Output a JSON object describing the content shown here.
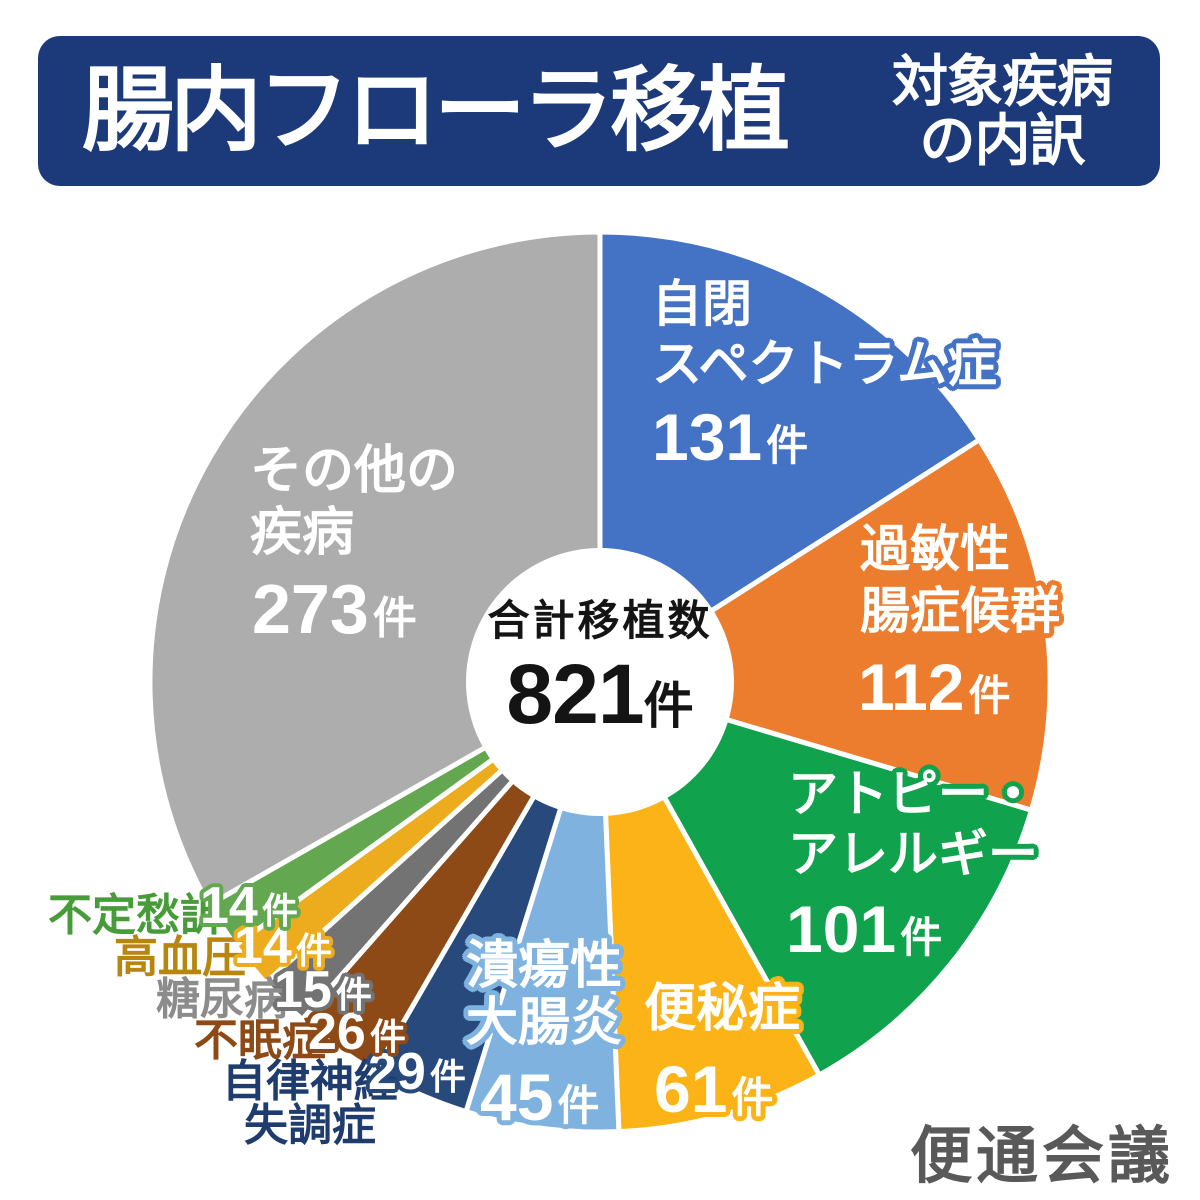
{
  "header": {
    "title": "腸内フローラ移植",
    "subtitle_lines": [
      "対象疾病",
      "の内訳"
    ],
    "bg_color": "#1C3A7A",
    "text_color": "#FFFFFF"
  },
  "center": {
    "label": "合計移植数",
    "value": "821",
    "unit": "件"
  },
  "chart_data": {
    "type": "pie",
    "title": "腸内フローラ移植 対象疾病の内訳",
    "total": 821,
    "unit": "件",
    "start_angle_deg": 0,
    "direction": "clockwise",
    "donut_hole": true,
    "legend_position": "on-slice",
    "segments": [
      {
        "label": "自閉スペクトラム症",
        "label_lines": [
          "自閉",
          "スペクトラム症"
        ],
        "value": 131,
        "color": "#4472C4",
        "label_text_color": "#FFFFFF"
      },
      {
        "label": "過敏性腸症候群",
        "label_lines": [
          "過敏性",
          "腸症候群"
        ],
        "value": 112,
        "color": "#EC7D2E",
        "label_text_color": "#FFFFFF"
      },
      {
        "label": "アトピー・アレルギー",
        "label_lines": [
          "アトピー・",
          "アレルギー"
        ],
        "value": 101,
        "color": "#10A24C",
        "label_text_color": "#FFFFFF"
      },
      {
        "label": "便秘症",
        "label_lines": [
          "便秘症"
        ],
        "value": 61,
        "color": "#FBB317",
        "label_text_color": "#FFFFFF"
      },
      {
        "label": "潰瘍性大腸炎",
        "label_lines": [
          "潰瘍性",
          "大腸炎"
        ],
        "value": 45,
        "color": "#7FB2DF",
        "label_text_color": "#FFFFFF"
      },
      {
        "label": "自律神経失調症",
        "label_lines": [
          "自律神経",
          "失調症"
        ],
        "value": 29,
        "color": "#27497B",
        "label_text_color": "#1F3C6E"
      },
      {
        "label": "不眠症",
        "label_lines": [
          "不眠症"
        ],
        "value": 26,
        "color": "#8E4A16",
        "label_text_color": "#8E4A16"
      },
      {
        "label": "糖尿病",
        "label_lines": [
          "糖尿病"
        ],
        "value": 15,
        "color": "#737373",
        "label_text_color": "#8C8C8C"
      },
      {
        "label": "高血圧",
        "label_lines": [
          "高血圧"
        ],
        "value": 14,
        "color": "#EDAC1E",
        "label_text_color": "#B8860F"
      },
      {
        "label": "不定愁訴",
        "label_lines": [
          "不定愁訴"
        ],
        "value": 14,
        "color": "#63A850",
        "label_text_color": "#479C39"
      },
      {
        "label": "その他の疾病",
        "label_lines": [
          "その他の",
          "疾病"
        ],
        "value": 273,
        "color": "#ADADAD",
        "label_text_color": "#FFFFFF"
      }
    ]
  },
  "watermark": {
    "text": "便通会議",
    "color": "#595959"
  }
}
